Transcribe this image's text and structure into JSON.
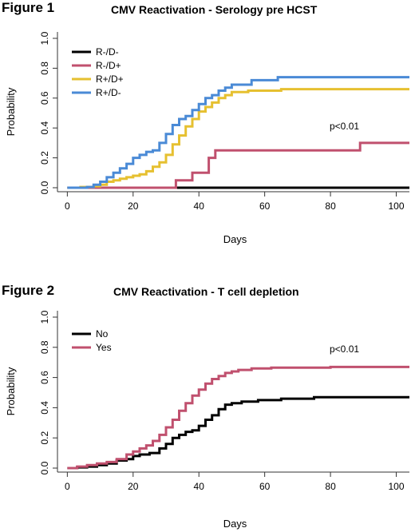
{
  "chart_data": [
    {
      "type": "line",
      "figure_label": "Figure 1",
      "title": "CMV Reactivation - Serology pre HCST",
      "xlabel": "Days",
      "ylabel": "Probability",
      "xlim": [
        -3,
        104
      ],
      "ylim": [
        0,
        1.0
      ],
      "x_ticks": [
        "0",
        "20",
        "40",
        "60",
        "80",
        "100"
      ],
      "y_ticks": [
        "0.0",
        "0.2",
        "0.4",
        "0.6",
        "0.8",
        "1.0"
      ],
      "annotation": "p<0.01",
      "legend_position": "top-left",
      "step": true,
      "series": [
        {
          "name": "R-/D-",
          "color": "#000000",
          "x": [
            0,
            104
          ],
          "y": [
            0,
            0
          ]
        },
        {
          "name": "R-/D+",
          "color": "#c0506e",
          "x": [
            0,
            33,
            38,
            43,
            45,
            89,
            104
          ],
          "y": [
            0,
            0.05,
            0.1,
            0.2,
            0.25,
            0.3,
            0.3
          ]
        },
        {
          "name": "R+/D+",
          "color": "#e6c030",
          "x": [
            0,
            4,
            8,
            10,
            12,
            14,
            16,
            18,
            20,
            22,
            24,
            26,
            28,
            30,
            32,
            34,
            36,
            38,
            40,
            42,
            44,
            46,
            48,
            50,
            55,
            65,
            104
          ],
          "y": [
            0,
            0.005,
            0.01,
            0.02,
            0.04,
            0.05,
            0.06,
            0.07,
            0.08,
            0.09,
            0.11,
            0.14,
            0.17,
            0.22,
            0.29,
            0.35,
            0.41,
            0.46,
            0.51,
            0.54,
            0.57,
            0.6,
            0.62,
            0.64,
            0.65,
            0.66,
            0.66
          ]
        },
        {
          "name": "R+/D-",
          "color": "#4a8ad6",
          "x": [
            0,
            6,
            8,
            10,
            12,
            14,
            16,
            18,
            20,
            22,
            24,
            26,
            28,
            30,
            32,
            34,
            36,
            38,
            40,
            42,
            44,
            46,
            48,
            50,
            56,
            64,
            104
          ],
          "y": [
            0,
            0.005,
            0.02,
            0.04,
            0.07,
            0.1,
            0.13,
            0.16,
            0.2,
            0.22,
            0.24,
            0.25,
            0.3,
            0.36,
            0.42,
            0.46,
            0.48,
            0.52,
            0.56,
            0.6,
            0.62,
            0.65,
            0.67,
            0.69,
            0.72,
            0.74,
            0.74
          ]
        }
      ]
    },
    {
      "type": "line",
      "figure_label": "Figure 2",
      "title": "CMV Reactivation - T cell depletion",
      "xlabel": "Days",
      "ylabel": "Probability",
      "xlim": [
        -3,
        104
      ],
      "ylim": [
        0,
        1.0
      ],
      "x_ticks": [
        "0",
        "20",
        "40",
        "60",
        "80",
        "100"
      ],
      "y_ticks": [
        "0.0",
        "0.2",
        "0.4",
        "0.6",
        "0.8",
        "1.0"
      ],
      "annotation": "p<0.01",
      "legend_position": "top-left",
      "step": true,
      "series": [
        {
          "name": "No",
          "color": "#000000",
          "x": [
            0,
            3,
            6,
            9,
            12,
            15,
            18,
            20,
            22,
            25,
            28,
            30,
            32,
            34,
            36,
            38,
            40,
            42,
            44,
            46,
            48,
            50,
            53,
            58,
            65,
            75,
            104
          ],
          "y": [
            0,
            0.005,
            0.01,
            0.02,
            0.03,
            0.05,
            0.06,
            0.08,
            0.09,
            0.1,
            0.13,
            0.16,
            0.2,
            0.22,
            0.24,
            0.25,
            0.28,
            0.32,
            0.35,
            0.39,
            0.42,
            0.43,
            0.44,
            0.45,
            0.46,
            0.47,
            0.47
          ]
        },
        {
          "name": "Yes",
          "color": "#c0506e",
          "x": [
            0,
            3,
            6,
            9,
            12,
            15,
            18,
            20,
            22,
            24,
            26,
            28,
            30,
            32,
            34,
            36,
            38,
            40,
            42,
            44,
            46,
            48,
            50,
            52,
            56,
            62,
            80,
            104
          ],
          "y": [
            0,
            0.01,
            0.02,
            0.03,
            0.04,
            0.06,
            0.09,
            0.11,
            0.13,
            0.15,
            0.18,
            0.22,
            0.27,
            0.32,
            0.38,
            0.43,
            0.48,
            0.52,
            0.56,
            0.59,
            0.61,
            0.63,
            0.64,
            0.65,
            0.66,
            0.665,
            0.67,
            0.67
          ]
        }
      ]
    }
  ]
}
